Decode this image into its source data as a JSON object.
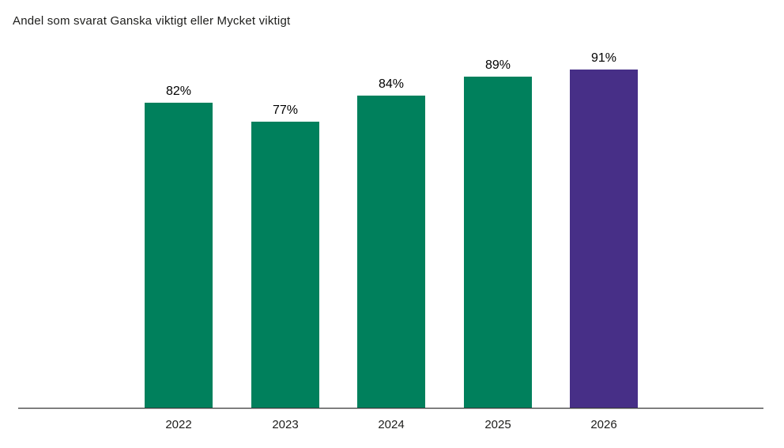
{
  "colors": {
    "background": "#ffffff",
    "bar_default": "#00805c",
    "bar_highlight": "#472f87",
    "axis_line": "#3a3a3a",
    "text": "#1d1d1b",
    "value_label_text": "#000000"
  },
  "chart_data": {
    "type": "bar",
    "title": "Andel som svarat Ganska viktigt eller Mycket viktigt",
    "categories": [
      "2022",
      "2023",
      "2024",
      "2025",
      "2026"
    ],
    "values": [
      82,
      77,
      84,
      89,
      91
    ],
    "value_labels": [
      "82%",
      "77%",
      "84%",
      "89%",
      "91%"
    ],
    "series_colors": [
      "#00805c",
      "#00805c",
      "#00805c",
      "#00805c",
      "#472f87"
    ],
    "xlabel": "",
    "ylabel": "",
    "ylim": [
      0,
      100
    ],
    "unit": "%",
    "grid": false,
    "legend": "none",
    "y_axis_visible": false,
    "x_axis_visible": true
  }
}
